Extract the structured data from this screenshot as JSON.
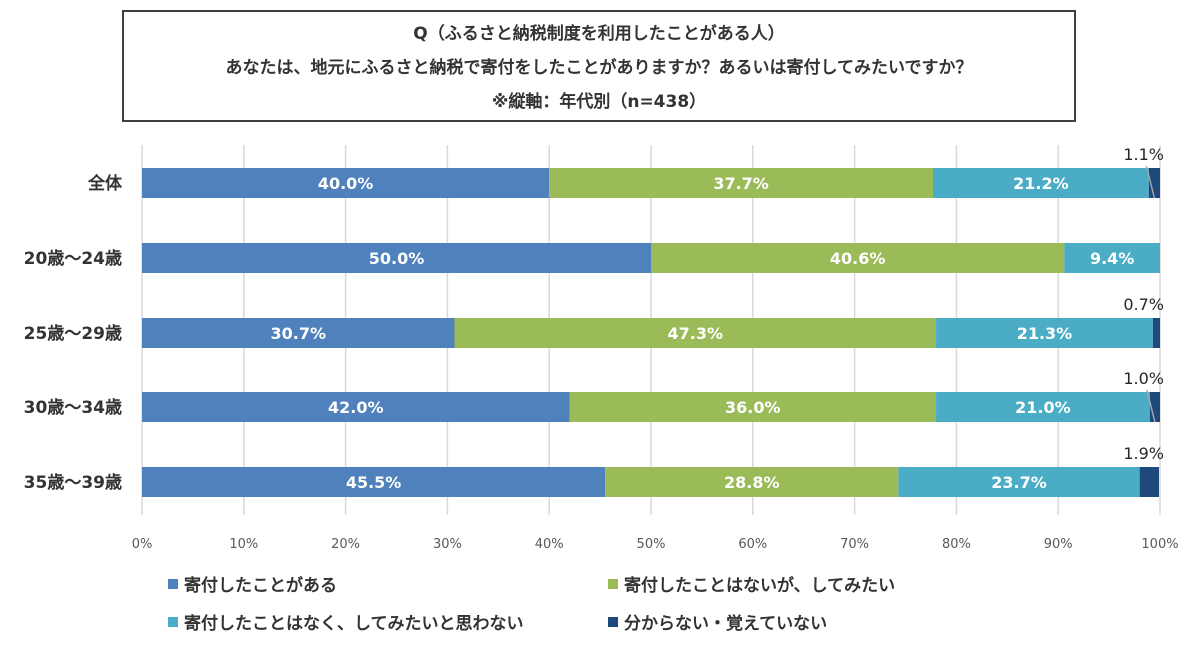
{
  "chart_data": {
    "type": "bar",
    "orientation": "horizontal-stacked-100",
    "title": "Q（ふるさと納税制度を利用したことがある人）",
    "subtitle": "あなたは、地元にふるさと納税で寄付をしたことがありますか？あるいは寄付してみたいですか？",
    "note": "※縦軸：年代別（n=438）",
    "title_lines": [
      "Q（ふるさと納税制度を利用したことがある人）",
      "あなたは、地元にふるさと納税で寄付をしたことがありますか？あるいは寄付してみたいですか？",
      "※縦軸：年代別（n=438）"
    ],
    "categories": [
      "全体",
      "20歳〜24歳",
      "25歳〜29歳",
      "30歳〜34歳",
      "35歳〜39歳"
    ],
    "series": [
      {
        "name": "寄付したことがある",
        "color": "#4f81bd",
        "values": [
          40.0,
          50.0,
          30.7,
          42.0,
          45.5
        ]
      },
      {
        "name": "寄付したことはないが、してみたい",
        "color": "#9bbb59",
        "values": [
          37.7,
          40.6,
          47.3,
          36.0,
          28.8
        ]
      },
      {
        "name": "寄付したことはなく、してみたいと思わない",
        "color": "#4bacc6",
        "values": [
          21.2,
          9.4,
          21.3,
          21.0,
          23.7
        ]
      },
      {
        "name": "分からない・覚えていない",
        "color": "#1f497d",
        "values": [
          1.1,
          0.0,
          0.7,
          1.0,
          1.9
        ]
      }
    ],
    "xlim": [
      0,
      100
    ],
    "xticks": [
      "0%",
      "10%",
      "20%",
      "30%",
      "40%",
      "50%",
      "60%",
      "70%",
      "80%",
      "90%",
      "100%"
    ],
    "grid": true,
    "legend_position": "bottom",
    "data_label_suffix": "%"
  }
}
